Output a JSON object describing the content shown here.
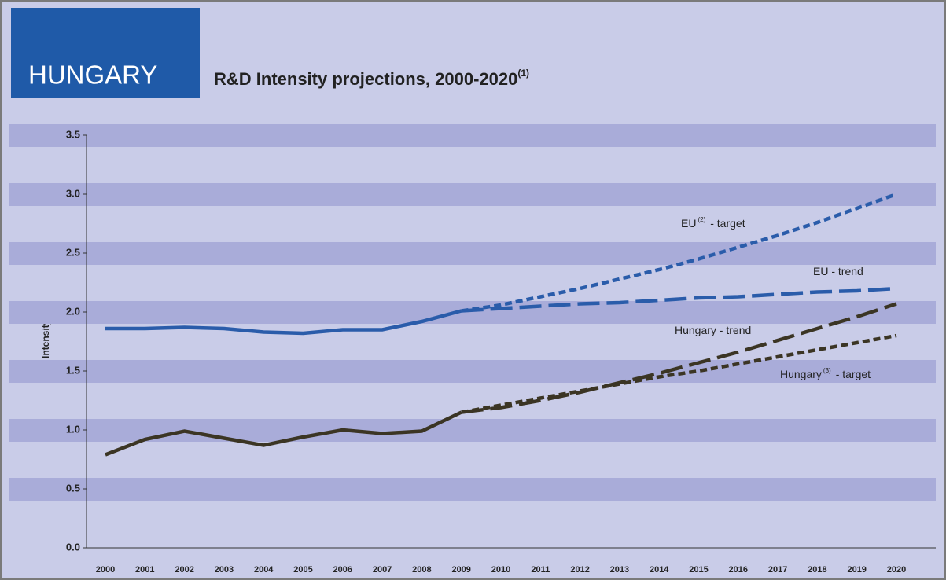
{
  "chart_data": {
    "type": "line",
    "header": "HUNGARY",
    "title": "R&D Intensity projections, 2000-2020",
    "title_note": "(1)",
    "ylabel": "R&D Intensity (%)",
    "categories": [
      "2000",
      "2001",
      "2002",
      "2003",
      "2004",
      "2005",
      "2006",
      "2007",
      "2008",
      "2009",
      "2010",
      "2011",
      "2012",
      "2013",
      "2014",
      "2015",
      "2016",
      "2017",
      "2018",
      "2019",
      "2020"
    ],
    "ylim": [
      0,
      3.5
    ],
    "yticks": [
      {
        "value": 0,
        "label": "0.0"
      },
      0.5,
      {
        "value": 1,
        "label": "1.0"
      },
      1.5,
      {
        "value": 2,
        "label": "2.0"
      },
      2.5,
      {
        "value": 3,
        "label": "3.0"
      },
      3.5
    ],
    "grid": "bands",
    "series": [
      {
        "color": "#2a5caa",
        "dash": "solid",
        "values": [
          1.86,
          1.86,
          1.87,
          1.86,
          1.83,
          1.82,
          1.85,
          1.85,
          1.92,
          2.01,
          null,
          null,
          null,
          null,
          null,
          null,
          null,
          null,
          null,
          null,
          null
        ]
      },
      {
        "color": "#2a5caa",
        "dash": "short",
        "values": [
          null,
          null,
          null,
          null,
          null,
          null,
          null,
          null,
          null,
          2.01,
          2.06,
          2.13,
          2.2,
          2.28,
          2.36,
          2.45,
          2.55,
          2.65,
          2.76,
          2.88,
          3.0
        ]
      },
      {
        "color": "#2a5caa",
        "dash": "long",
        "values": [
          null,
          null,
          null,
          null,
          null,
          null,
          null,
          null,
          null,
          2.01,
          2.03,
          2.05,
          2.07,
          2.08,
          2.1,
          2.12,
          2.13,
          2.15,
          2.17,
          2.18,
          2.2
        ]
      },
      {
        "color": "#3b3524",
        "dash": "solid",
        "values": [
          0.79,
          0.92,
          0.99,
          0.93,
          0.87,
          0.94,
          1.0,
          0.97,
          0.99,
          1.15,
          null,
          null,
          null,
          null,
          null,
          null,
          null,
          null,
          null,
          null,
          null
        ]
      },
      {
        "color": "#3b3524",
        "dash": "long",
        "values": [
          null,
          null,
          null,
          null,
          null,
          null,
          null,
          null,
          null,
          1.15,
          1.19,
          1.25,
          1.32,
          1.4,
          1.48,
          1.57,
          1.66,
          1.76,
          1.86,
          1.96,
          2.07
        ]
      },
      {
        "color": "#3b3524",
        "dash": "short",
        "values": [
          null,
          null,
          null,
          null,
          null,
          null,
          null,
          null,
          null,
          1.15,
          1.21,
          1.27,
          1.33,
          1.39,
          1.45,
          1.5,
          1.56,
          1.62,
          1.68,
          1.74,
          1.8
        ]
      }
    ],
    "annotations": [
      {
        "text": "EU",
        "note": "(2)",
        "suffix": "- target"
      },
      {
        "text": "EU - trend"
      },
      {
        "text": "Hungary - trend"
      },
      {
        "text": "Hungary",
        "note": "(3)",
        "suffix": "- target"
      }
    ]
  }
}
